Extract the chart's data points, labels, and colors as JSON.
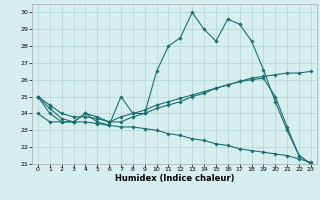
{
  "title": "",
  "xlabel": "Humidex (Indice chaleur)",
  "ylabel": "",
  "background_color": "#d6eeee",
  "grid_color": "#b8d8d8",
  "line_color": "#1a7070",
  "xlim": [
    -0.5,
    23.5
  ],
  "ylim": [
    21,
    30.5
  ],
  "yticks": [
    21,
    22,
    23,
    24,
    25,
    26,
    27,
    28,
    29,
    30
  ],
  "xticks": [
    0,
    1,
    2,
    3,
    4,
    5,
    6,
    7,
    8,
    9,
    10,
    11,
    12,
    13,
    14,
    15,
    16,
    17,
    18,
    19,
    20,
    21,
    22,
    23
  ],
  "line1_x": [
    0,
    1,
    2,
    3,
    4,
    5,
    6,
    7,
    8,
    9,
    10,
    11,
    12,
    13,
    14,
    15,
    16,
    17,
    18,
    19,
    20,
    21,
    22,
    23
  ],
  "line1_y": [
    25.0,
    24.0,
    23.5,
    23.5,
    24.0,
    23.5,
    23.3,
    25.0,
    24.0,
    24.0,
    26.5,
    28.0,
    28.5,
    30.0,
    29.0,
    28.3,
    29.6,
    29.3,
    28.3,
    26.6,
    24.7,
    23.0,
    21.5,
    21.0
  ],
  "line2_x": [
    0,
    1,
    2,
    3,
    4,
    5,
    6,
    7,
    8,
    9,
    10,
    11,
    12,
    13,
    14,
    15,
    16,
    17,
    18,
    19,
    20,
    21,
    22,
    23
  ],
  "line2_y": [
    24.0,
    23.5,
    23.5,
    23.5,
    24.0,
    23.8,
    23.5,
    23.8,
    24.0,
    24.2,
    24.5,
    24.7,
    24.9,
    25.1,
    25.3,
    25.5,
    25.7,
    25.9,
    26.1,
    26.2,
    26.3,
    26.4,
    26.4,
    26.5
  ],
  "line3_x": [
    0,
    1,
    2,
    3,
    4,
    5,
    6,
    7,
    8,
    9,
    10,
    11,
    12,
    13,
    14,
    15,
    16,
    17,
    18,
    19,
    20,
    21,
    22,
    23
  ],
  "line3_y": [
    25.0,
    24.5,
    24.0,
    23.8,
    23.8,
    23.7,
    23.5,
    23.5,
    23.8,
    24.0,
    24.3,
    24.5,
    24.7,
    25.0,
    25.2,
    25.5,
    25.7,
    25.9,
    26.0,
    26.1,
    25.0,
    23.2,
    21.5,
    21.0
  ],
  "line4_x": [
    0,
    1,
    2,
    3,
    4,
    5,
    6,
    7,
    8,
    9,
    10,
    11,
    12,
    13,
    14,
    15,
    16,
    17,
    18,
    19,
    20,
    21,
    22,
    23
  ],
  "line4_y": [
    25.0,
    24.3,
    23.7,
    23.5,
    23.5,
    23.4,
    23.3,
    23.2,
    23.2,
    23.1,
    23.0,
    22.8,
    22.7,
    22.5,
    22.4,
    22.2,
    22.1,
    21.9,
    21.8,
    21.7,
    21.6,
    21.5,
    21.3,
    21.1
  ]
}
